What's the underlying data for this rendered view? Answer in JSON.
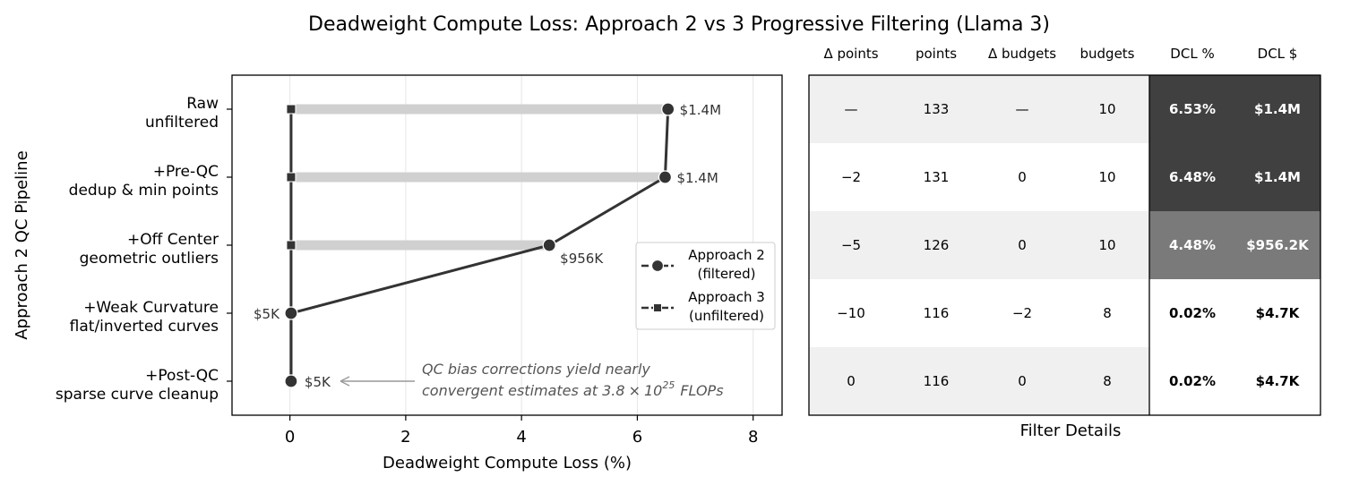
{
  "chart_data": {
    "type": "dumbbell",
    "title": "Deadweight Compute Loss: Approach 2 vs 3 Progressive Filtering (Llama 3)",
    "xlabel": "Deadweight Compute Loss (%)",
    "ylabel": "Approach 2 QC Pipeline",
    "xlim": [
      -1,
      8.5
    ],
    "xticks": [
      0,
      2,
      4,
      6,
      8
    ],
    "grid": "vertical",
    "categories": [
      {
        "line1": "Raw",
        "line2": "unfiltered"
      },
      {
        "line1": "+Pre-QC",
        "line2": "dedup & min points"
      },
      {
        "line1": "+Off Center",
        "line2": "geometric outliers"
      },
      {
        "line1": "+Weak Curvature",
        "line2": "flat/inverted curves"
      },
      {
        "line1": "+Post-QC",
        "line2": "sparse curve cleanup"
      }
    ],
    "series": [
      {
        "name": "Approach 2 (filtered)",
        "legend_line1": "Approach 2",
        "legend_line2": "(filtered)",
        "marker": "circle",
        "values": [
          6.53,
          6.48,
          4.48,
          0.02,
          0.02
        ],
        "labels": [
          "$1.4M",
          "$1.4M",
          "$956K",
          "$5K",
          "$5K"
        ]
      },
      {
        "name": "Approach 3 (unfiltered)",
        "legend_line1": "Approach 3",
        "legend_line2": "(unfiltered)",
        "marker": "square",
        "values": [
          0.02,
          0.02,
          0.02,
          0.02,
          0.02
        ]
      }
    ],
    "annotation": {
      "line1": "QC bias corrections yield nearly",
      "line2_prefix": "convergent estimates at 3.8",
      "times": "×",
      "base": "10",
      "exponent": "25",
      "line2_suffix": "FLOPs"
    },
    "legend_position": "center-right",
    "table": {
      "xlabel": "Filter Details",
      "columns": [
        "Δ points",
        "points",
        "Δ budgets",
        "budgets",
        "DCL %",
        "DCL $"
      ],
      "rows": [
        [
          "—",
          "133",
          "—",
          "10",
          "6.53%",
          "$1.4M"
        ],
        [
          "−2",
          "131",
          "0",
          "10",
          "6.48%",
          "$1.4M"
        ],
        [
          "−5",
          "126",
          "0",
          "10",
          "4.48%",
          "$956.2K"
        ],
        [
          "−10",
          "116",
          "−2",
          "8",
          "0.02%",
          "$4.7K"
        ],
        [
          "0",
          "116",
          "0",
          "8",
          "0.02%",
          "$4.7K"
        ]
      ],
      "dcl_fill": [
        "#404040",
        "#404040",
        "#7a7a7a",
        "#ffffff",
        "#ffffff"
      ],
      "dcl_text": [
        "#ffffff",
        "#ffffff",
        "#ffffff",
        "#000000",
        "#000000"
      ],
      "band_fill": [
        "#f0f0f0",
        "#ffffff",
        "#f0f0f0",
        "#ffffff",
        "#f0f0f0"
      ]
    },
    "colors": {
      "line": "#333333",
      "dumbbell": "#d0d0d0",
      "grid": "#e6e6e6",
      "arrow": "#999999",
      "annotation": "#555555"
    }
  }
}
